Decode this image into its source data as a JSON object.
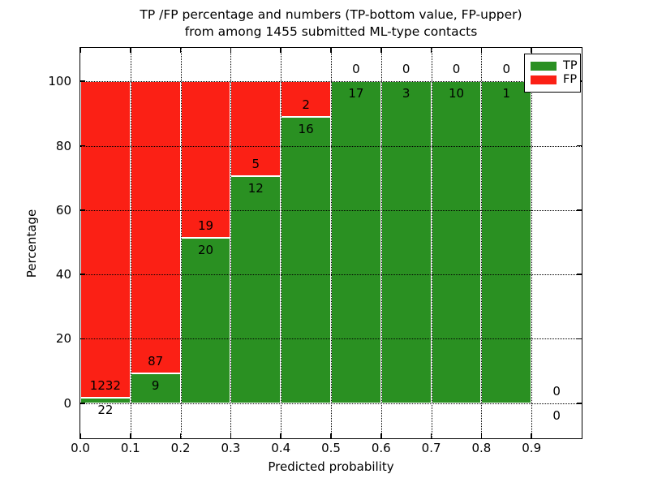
{
  "figure": {
    "title_line1": "TP /FP percentage and numbers (TP-bottom value, FP-upper)",
    "title_line2": "from among 1455 submitted ML-type contacts"
  },
  "chart_data": {
    "type": "bar",
    "stacked": true,
    "title": "TP /FP percentage and numbers (TP-bottom value, FP-upper)\nfrom among 1455 submitted ML-type contacts",
    "total_submitted_contacts": 1455,
    "xlabel": "Predicted probability",
    "ylabel": "Percentage",
    "xlim": [
      0.0,
      1.0
    ],
    "ylim": [
      -10.9,
      110.4
    ],
    "grid": "dotted",
    "x_tick_values": [
      0.0,
      0.1,
      0.2,
      0.3,
      0.4,
      0.5,
      0.6,
      0.7,
      0.8,
      0.9
    ],
    "x_tick_labels": [
      "0.0",
      "0.1",
      "0.2",
      "0.3",
      "0.4",
      "0.5",
      "0.6",
      "0.7",
      "0.8",
      "0.9"
    ],
    "y_tick_values": [
      0,
      20,
      40,
      60,
      80,
      100
    ],
    "y_tick_labels": [
      "0",
      "20",
      "40",
      "60",
      "80",
      "100"
    ],
    "legend": {
      "position": "upper right",
      "entries": [
        {
          "label": "TP",
          "color": "#2a9022"
        },
        {
          "label": "FP",
          "color": "#fb2015"
        }
      ]
    },
    "bins": [
      {
        "x0": 0.0,
        "x1": 0.1,
        "tp_count": 22,
        "fp_count": 1232,
        "tp_pct": 1.75,
        "fp_pct": 98.25
      },
      {
        "x0": 0.1,
        "x1": 0.2,
        "tp_count": 9,
        "fp_count": 87,
        "tp_pct": 9.38,
        "fp_pct": 90.62
      },
      {
        "x0": 0.2,
        "x1": 0.3,
        "tp_count": 20,
        "fp_count": 19,
        "tp_pct": 51.28,
        "fp_pct": 48.72
      },
      {
        "x0": 0.3,
        "x1": 0.4,
        "tp_count": 12,
        "fp_count": 5,
        "tp_pct": 70.59,
        "fp_pct": 29.41
      },
      {
        "x0": 0.4,
        "x1": 0.5,
        "tp_count": 16,
        "fp_count": 2,
        "tp_pct": 88.89,
        "fp_pct": 11.11
      },
      {
        "x0": 0.5,
        "x1": 0.6,
        "tp_count": 17,
        "fp_count": 0,
        "tp_pct": 100,
        "fp_pct": 0
      },
      {
        "x0": 0.6,
        "x1": 0.7,
        "tp_count": 3,
        "fp_count": 0,
        "tp_pct": 100,
        "fp_pct": 0
      },
      {
        "x0": 0.7,
        "x1": 0.8,
        "tp_count": 10,
        "fp_count": 0,
        "tp_pct": 100,
        "fp_pct": 0
      },
      {
        "x0": 0.8,
        "x1": 0.9,
        "tp_count": 1,
        "fp_count": 0,
        "tp_pct": 100,
        "fp_pct": 0
      },
      {
        "x0": 0.9,
        "x1": 1.0,
        "tp_count": 0,
        "fp_count": 0,
        "tp_pct": 0,
        "fp_pct": 0
      }
    ],
    "colors": {
      "tp": "#2a9022",
      "fp": "#fb2015",
      "bar_edge": "#ffffff",
      "grid": "#000000",
      "background": "#ffffff"
    }
  }
}
